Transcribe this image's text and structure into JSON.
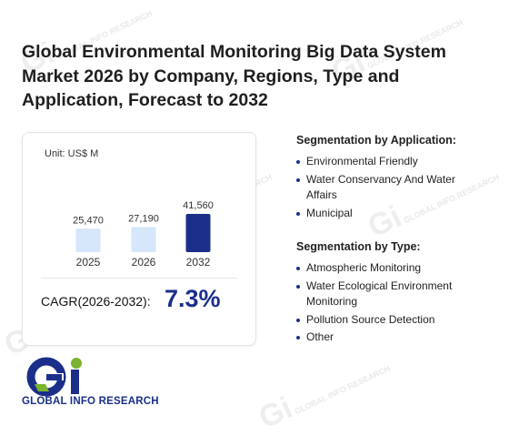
{
  "title": "Global Environmental Monitoring Big Data System Market 2026 by Company, Regions, Type and Application, Forecast to 2032",
  "watermark": "GLOBAL INFO RESEARCH",
  "chart": {
    "unit_label": "Unit: US$ M",
    "cagr_label": "CAGR(2026-2032):",
    "cagr_value": "7.3%"
  },
  "chart_data": {
    "type": "bar",
    "categories": [
      "2025",
      "2026",
      "2032"
    ],
    "values": [
      25470,
      27190,
      41560
    ],
    "value_labels": [
      "25,470",
      "27,190",
      "41,560"
    ],
    "ylabel": "",
    "grid": false,
    "colors": [
      "#d6e6fb",
      "#d6e6fb",
      "#1b2f8a"
    ]
  },
  "application": {
    "heading": "Segmentation by Application:",
    "items": [
      "Environmental Friendly",
      "Water Conservancy And Water Affairs",
      "Municipal"
    ]
  },
  "type_seg": {
    "heading": "Segmentation by Type:",
    "items": [
      "Atmospheric Monitoring",
      "Water Ecological Environment Monitoring",
      "Pollution Source Detection",
      "Other"
    ]
  },
  "logo": {
    "text": "GLOBAL INFO RESEARCH"
  }
}
